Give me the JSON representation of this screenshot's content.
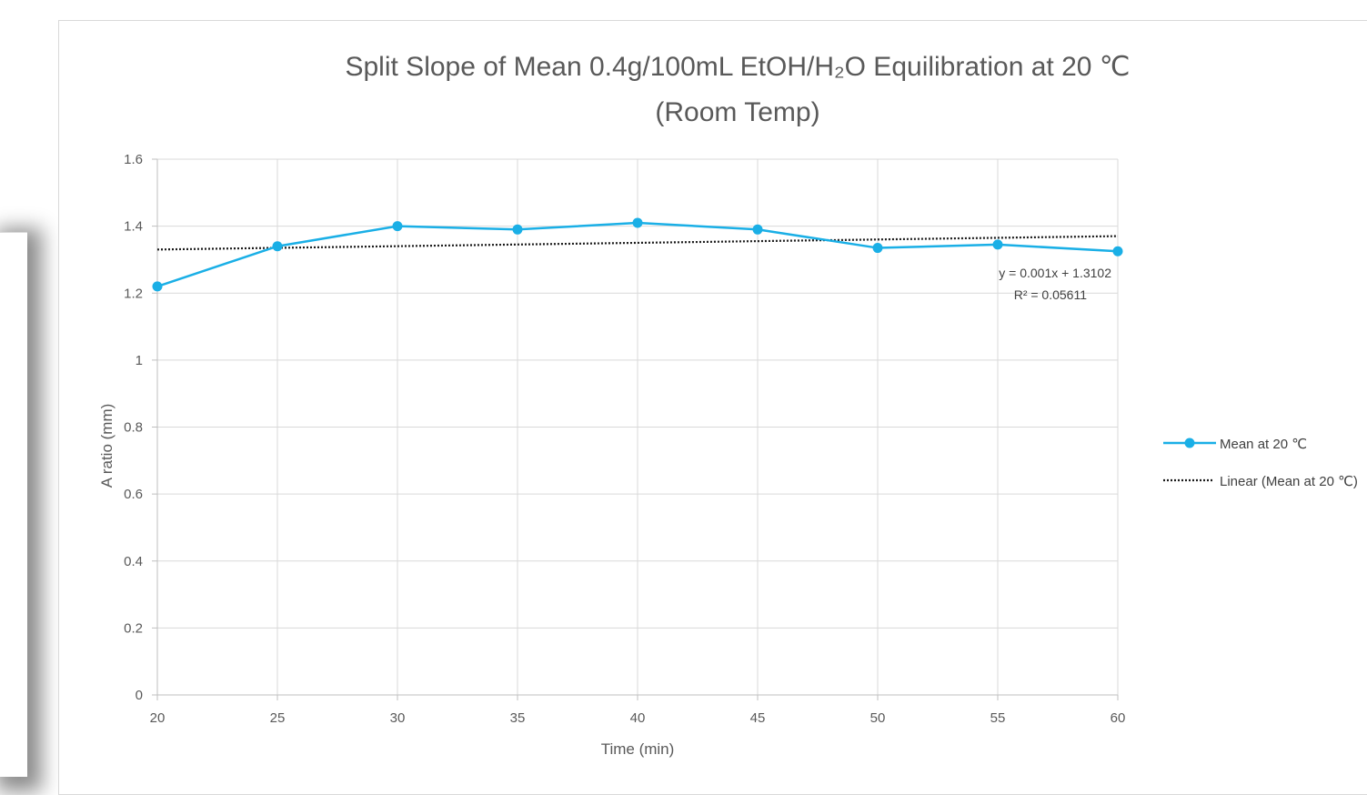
{
  "chart_data": {
    "type": "line",
    "title_line1": "Split Slope of Mean 0.4g/100mL EtOH/H₂O Equilibration at 20 ℃",
    "title_line2": "(Room Temp)",
    "xlabel": "Time (min)",
    "ylabel": "A ratio (mm)",
    "xlim": [
      20,
      60
    ],
    "ylim": [
      0,
      1.6
    ],
    "x_ticks": [
      20,
      25,
      30,
      35,
      40,
      45,
      50,
      55,
      60
    ],
    "y_ticks": [
      0,
      0.2,
      0.4,
      0.6,
      0.8,
      1,
      1.2,
      1.4,
      1.6
    ],
    "grid": true,
    "legend_position": "right",
    "series": [
      {
        "name": "Mean at 20 ℃",
        "color": "#1aafe6",
        "marker": "circle",
        "x": [
          20,
          25,
          30,
          35,
          40,
          45,
          50,
          55,
          60
        ],
        "y": [
          1.22,
          1.34,
          1.4,
          1.39,
          1.41,
          1.39,
          1.335,
          1.345,
          1.325
        ]
      }
    ],
    "trendline": {
      "legend_label": "Linear  (Mean at 20 ℃)",
      "style": "dotted",
      "color": "#1a1a1a",
      "slope": 0.001,
      "intercept": 1.3102,
      "equation_label": "y = 0.001x + 1.3102",
      "r2_label": "R² = 0.05611"
    }
  }
}
